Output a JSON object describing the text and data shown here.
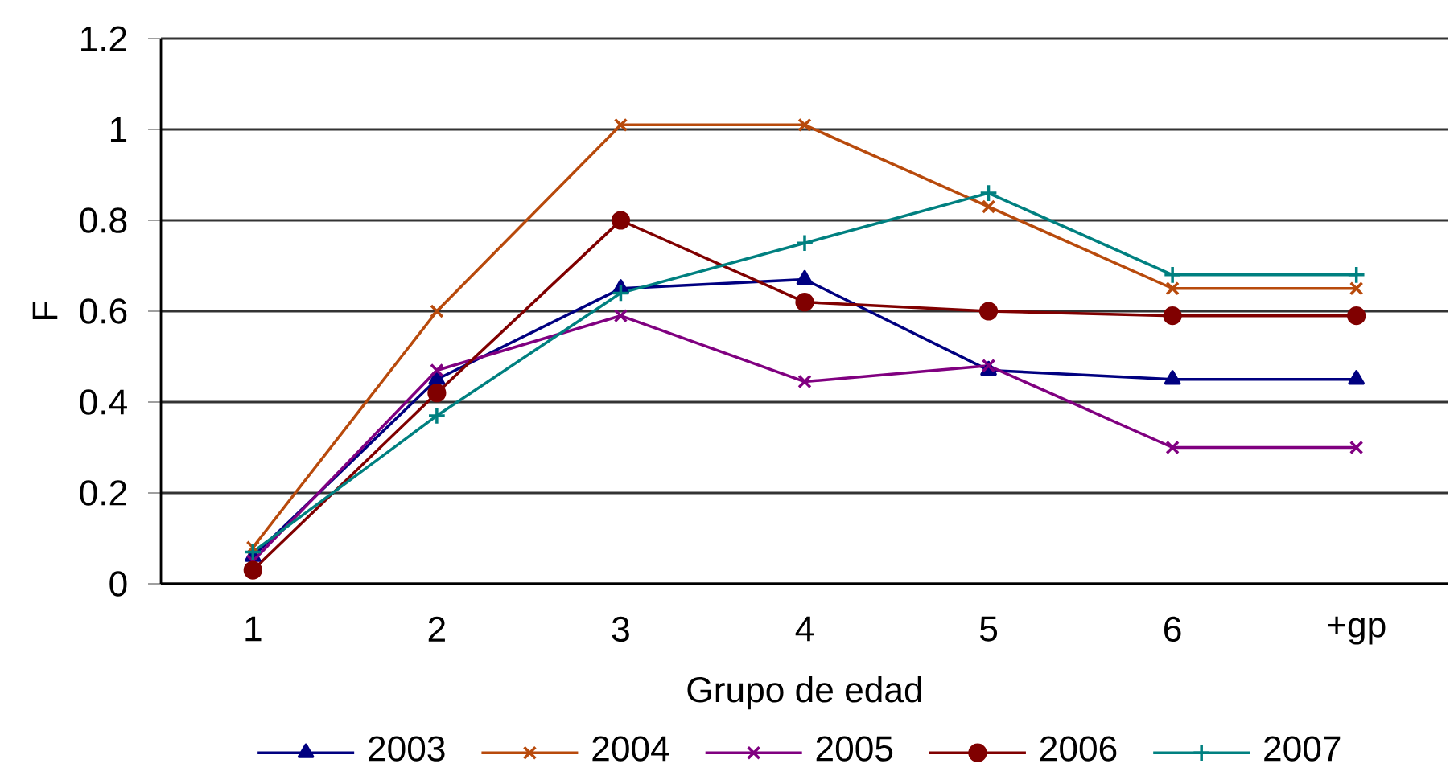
{
  "chart_data": {
    "type": "line",
    "xlabel": "Grupo de edad",
    "ylabel": "F",
    "categories": [
      "1",
      "2",
      "3",
      "4",
      "5",
      "6",
      "+gp"
    ],
    "ylim": [
      0,
      1.2
    ],
    "yticks": [
      0,
      0.2,
      0.4,
      0.6,
      0.8,
      1,
      1.2
    ],
    "grid": "y",
    "legend": "bottom",
    "series": [
      {
        "name": "2003",
        "color": "#000080",
        "marker": "triangle",
        "values": [
          0.06,
          0.45,
          0.65,
          0.67,
          0.47,
          0.45,
          0.45
        ]
      },
      {
        "name": "2004",
        "color": "#b84a0c",
        "marker": "cross",
        "values": [
          0.08,
          0.6,
          1.01,
          1.01,
          0.83,
          0.65,
          0.65
        ]
      },
      {
        "name": "2005",
        "color": "#800080",
        "marker": "cross",
        "values": [
          0.05,
          0.47,
          0.59,
          0.445,
          0.48,
          0.3,
          0.3
        ]
      },
      {
        "name": "2006",
        "color": "#800000",
        "marker": "circle",
        "values": [
          0.03,
          0.42,
          0.8,
          0.62,
          0.6,
          0.59,
          0.59
        ]
      },
      {
        "name": "2007",
        "color": "#008080",
        "marker": "plus",
        "values": [
          0.07,
          0.37,
          0.64,
          0.75,
          0.86,
          0.68,
          0.68
        ]
      }
    ]
  }
}
